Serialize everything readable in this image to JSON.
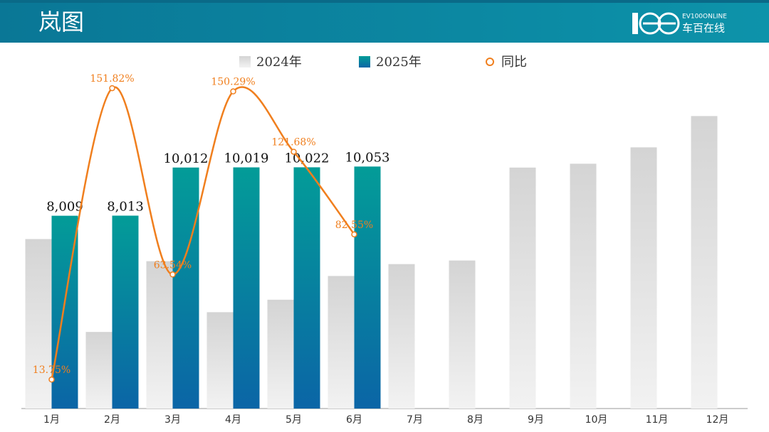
{
  "header": {
    "title": "岚图",
    "logo_en": "EV100ONLINE",
    "logo_cn": "车百在线"
  },
  "chart_data": {
    "type": "bar",
    "categories": [
      "1月",
      "2月",
      "3月",
      "4月",
      "5月",
      "6月",
      "7月",
      "8月",
      "9月",
      "10月",
      "11月",
      "12月"
    ],
    "ylim": [
      0,
      15200
    ],
    "y2lim": [
      0,
      173.4
    ],
    "series": [
      {
        "name": "2024年",
        "color": "#d6d6d6",
        "values": [
          7041,
          3182,
          6122,
          4003,
          4521,
          5507,
          6000,
          6150,
          10010,
          10170,
          10850,
          12150
        ]
      },
      {
        "name": "2025年",
        "color": "#058f9c",
        "values": [
          8009,
          8013,
          10012,
          10019,
          10022,
          10053,
          null,
          null,
          null,
          null,
          null,
          null
        ],
        "value_labels": [
          "8,009",
          "8,013",
          "10,012",
          "10,019",
          "10,022",
          "10,053",
          null,
          null,
          null,
          null,
          null,
          null
        ]
      },
      {
        "name": "同比",
        "type": "line",
        "axis": "y2",
        "color": "#f07f1e",
        "values": [
          13.75,
          151.82,
          63.54,
          150.29,
          121.68,
          82.55,
          null,
          null,
          null,
          null,
          null,
          null
        ],
        "value_labels": [
          "13.75%",
          "151.82%",
          "63.54%",
          "150.29%",
          "121.68%",
          "82.55%",
          null,
          null,
          null,
          null,
          null,
          null
        ]
      }
    ]
  }
}
